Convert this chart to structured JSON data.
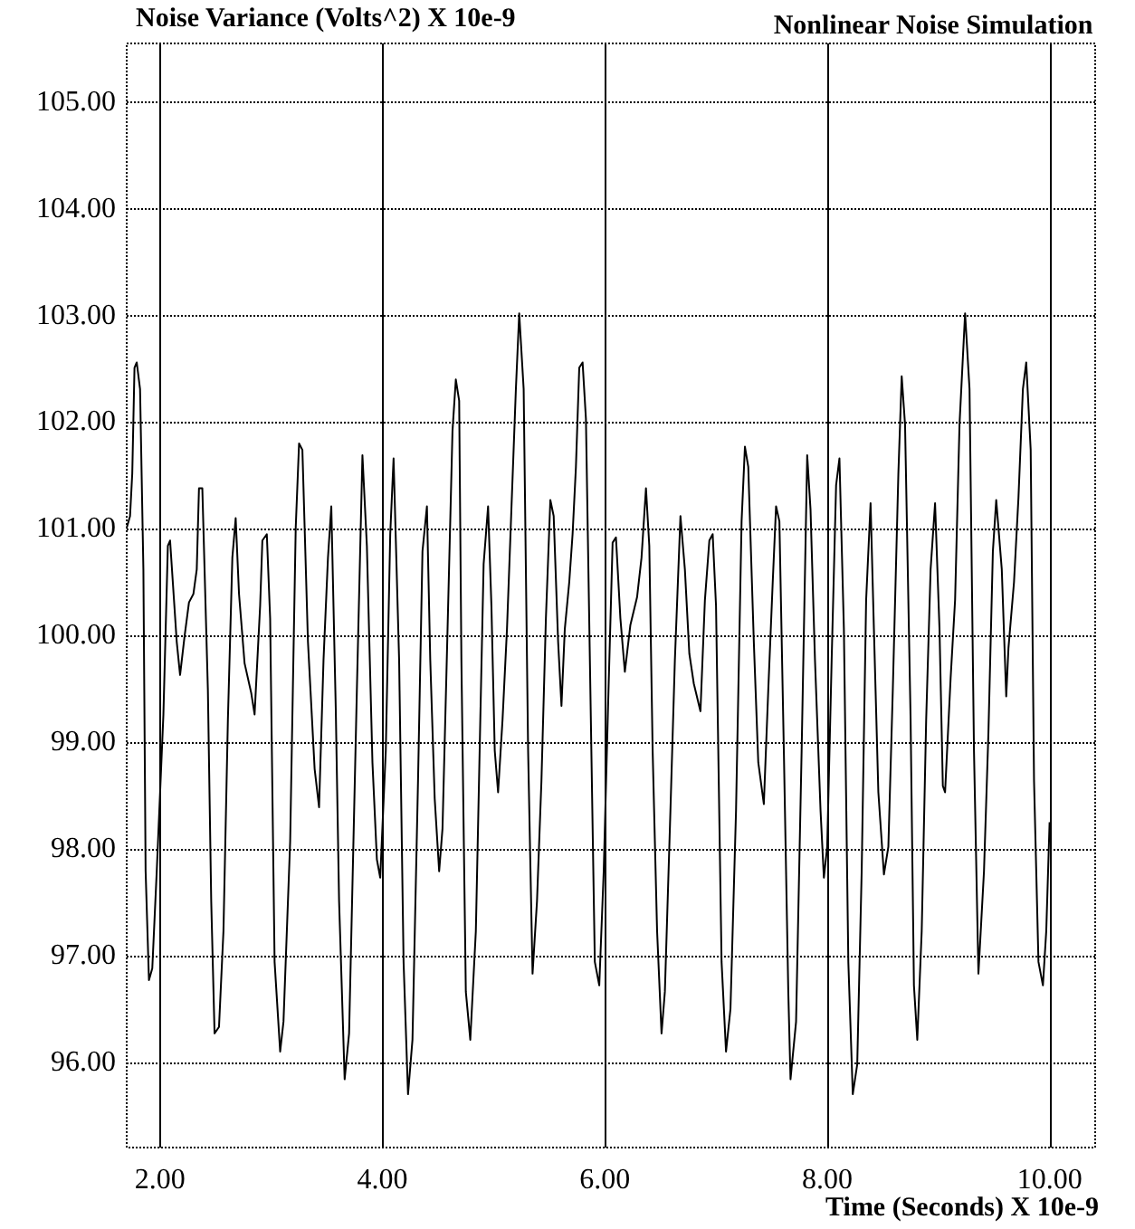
{
  "chart_data": {
    "type": "line",
    "title": "Nonlinear Noise Simulation",
    "ylabel": "Noise Variance (Volts^2) X 10e-9",
    "xlabel": "Time (Seconds) X 10e-9",
    "xlim": [
      1.7,
      10.41
    ],
    "ylim": [
      95.2,
      105.55
    ],
    "xticks": [
      {
        "value": 2,
        "label": "2.00"
      },
      {
        "value": 4,
        "label": "4.00"
      },
      {
        "value": 6,
        "label": "6.00"
      },
      {
        "value": 8,
        "label": "8.00"
      },
      {
        "value": 10,
        "label": "10.00"
      }
    ],
    "yticks": [
      {
        "value": 96,
        "label": "96.00"
      },
      {
        "value": 97,
        "label": "97.00"
      },
      {
        "value": 98,
        "label": "98.00"
      },
      {
        "value": 99,
        "label": "99.00"
      },
      {
        "value": 100,
        "label": "100.00"
      },
      {
        "value": 101,
        "label": "101.00"
      },
      {
        "value": 102,
        "label": "102.00"
      },
      {
        "value": 103,
        "label": "103.00"
      },
      {
        "value": 104,
        "label": "104.00"
      },
      {
        "value": 105,
        "label": "105.00"
      }
    ],
    "grid": true,
    "marker": "none",
    "line_style": "solid",
    "series": [
      {
        "color": "#000000",
        "x": [
          1.7,
          1.73,
          1.75,
          1.77,
          1.79,
          1.82,
          1.85,
          1.87,
          1.9,
          1.93,
          1.97,
          2.03,
          2.07,
          2.09,
          2.15,
          2.18,
          2.22,
          2.26,
          2.3,
          2.33,
          2.35,
          2.38,
          2.43,
          2.46,
          2.49,
          2.53,
          2.57,
          2.61,
          2.65,
          2.68,
          2.71,
          2.76,
          2.82,
          2.85,
          2.9,
          2.92,
          2.96,
          2.99,
          3.03,
          3.08,
          3.11,
          3.17,
          3.22,
          3.25,
          3.28,
          3.33,
          3.39,
          3.43,
          3.47,
          3.51,
          3.54,
          3.58,
          3.61,
          3.66,
          3.7,
          3.77,
          3.82,
          3.86,
          3.91,
          3.95,
          3.98,
          4.03,
          4.07,
          4.1,
          4.15,
          4.19,
          4.23,
          4.27,
          4.32,
          4.36,
          4.4,
          4.43,
          4.47,
          4.51,
          4.54,
          4.58,
          4.63,
          4.66,
          4.69,
          4.71,
          4.75,
          4.79,
          4.84,
          4.88,
          4.91,
          4.95,
          4.98,
          5.01,
          5.04,
          5.08,
          5.12,
          5.16,
          5.2,
          5.23,
          5.27,
          5.31,
          5.35,
          5.39,
          5.43,
          5.47,
          5.51,
          5.54,
          5.58,
          5.61,
          5.64,
          5.68,
          5.71,
          5.74,
          5.77,
          5.8,
          5.83,
          5.87,
          5.91,
          5.95,
          5.99,
          6.03,
          6.07,
          6.1,
          6.14,
          6.18,
          6.23,
          6.29,
          6.33,
          6.37,
          6.4,
          6.43,
          6.47,
          6.51,
          6.54,
          6.59,
          6.63,
          6.68,
          6.72,
          6.76,
          6.8,
          6.86,
          6.9,
          6.94,
          6.97,
          7.0,
          7.05,
          7.09,
          7.13,
          7.18,
          7.23,
          7.26,
          7.29,
          7.34,
          7.38,
          7.43,
          7.47,
          7.51,
          7.54,
          7.57,
          7.61,
          7.65,
          7.67,
          7.72,
          7.77,
          7.82,
          7.85,
          7.89,
          7.94,
          7.97,
          8.0,
          8.04,
          8.08,
          8.11,
          8.15,
          8.19,
          8.23,
          8.27,
          8.31,
          8.35,
          8.39,
          8.42,
          8.46,
          8.51,
          8.55,
          8.59,
          8.64,
          8.67,
          8.7,
          8.75,
          8.78,
          8.81,
          8.85,
          8.89,
          8.93,
          8.97,
          9.01,
          9.04,
          9.06,
          9.11,
          9.15,
          9.19,
          9.24,
          9.28,
          9.32,
          9.36,
          9.41,
          9.45,
          9.49,
          9.52,
          9.57,
          9.61,
          9.63,
          9.68,
          9.72,
          9.76,
          9.79,
          9.83,
          9.86,
          9.9,
          9.94,
          9.97,
          10.0
        ],
        "values": [
          101.01,
          101.12,
          101.52,
          102.51,
          102.56,
          102.31,
          100.62,
          97.79,
          96.77,
          96.88,
          97.79,
          99.26,
          100.84,
          100.89,
          99.94,
          99.63,
          99.99,
          100.31,
          100.39,
          100.62,
          101.38,
          101.38,
          99.49,
          97.51,
          96.27,
          96.33,
          97.23,
          99.21,
          100.73,
          101.1,
          100.39,
          99.74,
          99.46,
          99.26,
          100.28,
          100.89,
          100.95,
          100.16,
          96.94,
          96.1,
          96.38,
          98.07,
          101.01,
          101.8,
          101.74,
          99.94,
          98.75,
          98.39,
          99.77,
          100.73,
          101.21,
          99.32,
          97.51,
          95.84,
          96.27,
          99.49,
          101.69,
          100.84,
          98.81,
          97.9,
          97.73,
          98.92,
          100.95,
          101.66,
          99.77,
          96.94,
          95.7,
          96.21,
          98.64,
          100.79,
          101.21,
          99.77,
          98.47,
          97.79,
          98.19,
          99.83,
          101.92,
          102.4,
          102.2,
          99.77,
          96.66,
          96.21,
          97.23,
          99.21,
          100.67,
          101.21,
          100.28,
          98.92,
          98.53,
          99.21,
          100.06,
          101.19,
          102.31,
          103.02,
          102.31,
          98.92,
          96.83,
          97.51,
          98.64,
          100.16,
          101.27,
          101.12,
          99.94,
          99.34,
          100.06,
          100.5,
          100.95,
          101.58,
          102.51,
          102.56,
          102.03,
          99.49,
          96.94,
          96.72,
          97.79,
          99.37,
          100.87,
          100.92,
          100.16,
          99.66,
          100.1,
          100.36,
          100.73,
          101.38,
          100.84,
          98.92,
          97.23,
          96.27,
          96.66,
          98.36,
          99.77,
          101.12,
          100.62,
          99.83,
          99.55,
          99.29,
          100.33,
          100.89,
          100.95,
          100.28,
          96.94,
          96.1,
          96.5,
          98.36,
          101.07,
          101.77,
          101.58,
          99.94,
          98.81,
          98.42,
          99.49,
          100.5,
          101.21,
          101.07,
          98.92,
          96.66,
          95.84,
          96.38,
          98.92,
          101.69,
          101.18,
          99.77,
          98.36,
          97.73,
          98.02,
          99.77,
          101.41,
          101.66,
          100.06,
          96.94,
          95.7,
          95.98,
          97.79,
          100.33,
          101.24,
          100.06,
          98.53,
          97.76,
          98.02,
          99.49,
          101.52,
          102.43,
          101.98,
          99.21,
          96.72,
          96.21,
          97.23,
          99.21,
          100.62,
          101.24,
          100.06,
          98.59,
          98.53,
          99.6,
          100.33,
          101.98,
          103.02,
          102.31,
          98.92,
          96.83,
          97.79,
          99.09,
          100.79,
          101.27,
          100.62,
          99.43,
          99.88,
          100.5,
          101.29,
          102.31,
          102.56,
          101.74,
          98.64,
          96.94,
          96.72,
          97.23,
          98.25
        ]
      }
    ]
  }
}
